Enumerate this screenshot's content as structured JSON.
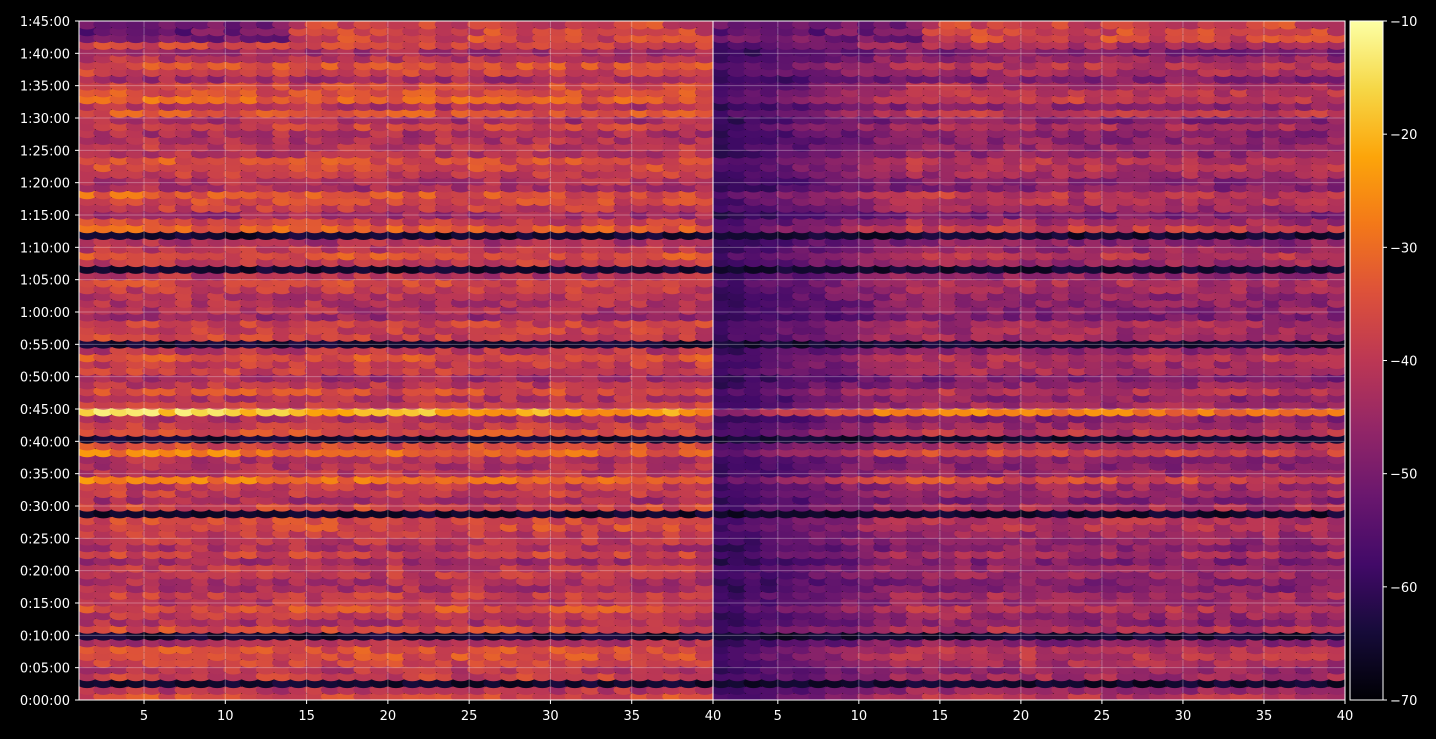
{
  "chart_data": [
    {
      "type": "heatmap",
      "panel": "left",
      "title": "",
      "xlabel": "",
      "ylabel": "",
      "xlim": [
        1,
        40
      ],
      "ylim_seconds": [
        0,
        6300
      ],
      "x_ticks": [
        "5",
        "10",
        "15",
        "20",
        "25",
        "30",
        "35",
        "40"
      ],
      "x_tick_values": [
        5,
        10,
        15,
        20,
        25,
        30,
        35,
        40
      ],
      "y_ticks": [
        "0:00:00",
        "0:05:00",
        "0:10:00",
        "0:15:00",
        "0:20:00",
        "0:25:00",
        "0:30:00",
        "0:35:00",
        "0:40:00",
        "0:45:00",
        "0:50:00",
        "0:55:00",
        "1:00:00",
        "1:05:00",
        "1:10:00",
        "1:15:00",
        "1:20:00",
        "1:25:00",
        "1:30:00",
        "1:35:00",
        "1:40:00",
        "1:45:00"
      ],
      "grid": true,
      "value_range": [
        -70,
        -10
      ],
      "notable_rows": [
        {
          "time": "0:45:00",
          "approx_peak": -13
        },
        {
          "time": "0:38:30",
          "approx_peak": -20
        },
        {
          "time": "1:18:00",
          "approx_peak": -22
        },
        {
          "time": "1:07:00",
          "approx_peak": -24
        }
      ]
    },
    {
      "type": "heatmap",
      "panel": "right",
      "title": "",
      "xlabel": "",
      "ylabel": "",
      "xlim": [
        1,
        40
      ],
      "x_ticks": [
        "5",
        "10",
        "15",
        "20",
        "25",
        "30",
        "35",
        "40"
      ],
      "x_tick_values": [
        5,
        10,
        15,
        20,
        25,
        30,
        35,
        40
      ],
      "grid": true,
      "value_range": [
        -70,
        -10
      ]
    }
  ],
  "colorbar": {
    "colormap": "inferno",
    "min": -70,
    "max": -10,
    "ticks": [
      "−10",
      "−20",
      "−30",
      "−40",
      "−50",
      "−60",
      "−70"
    ],
    "tick_values": [
      -10,
      -20,
      -30,
      -40,
      -50,
      -60,
      -70
    ]
  },
  "colors": {
    "background": "#000000",
    "axes": "#ffffff",
    "grid": "#ffffff"
  }
}
